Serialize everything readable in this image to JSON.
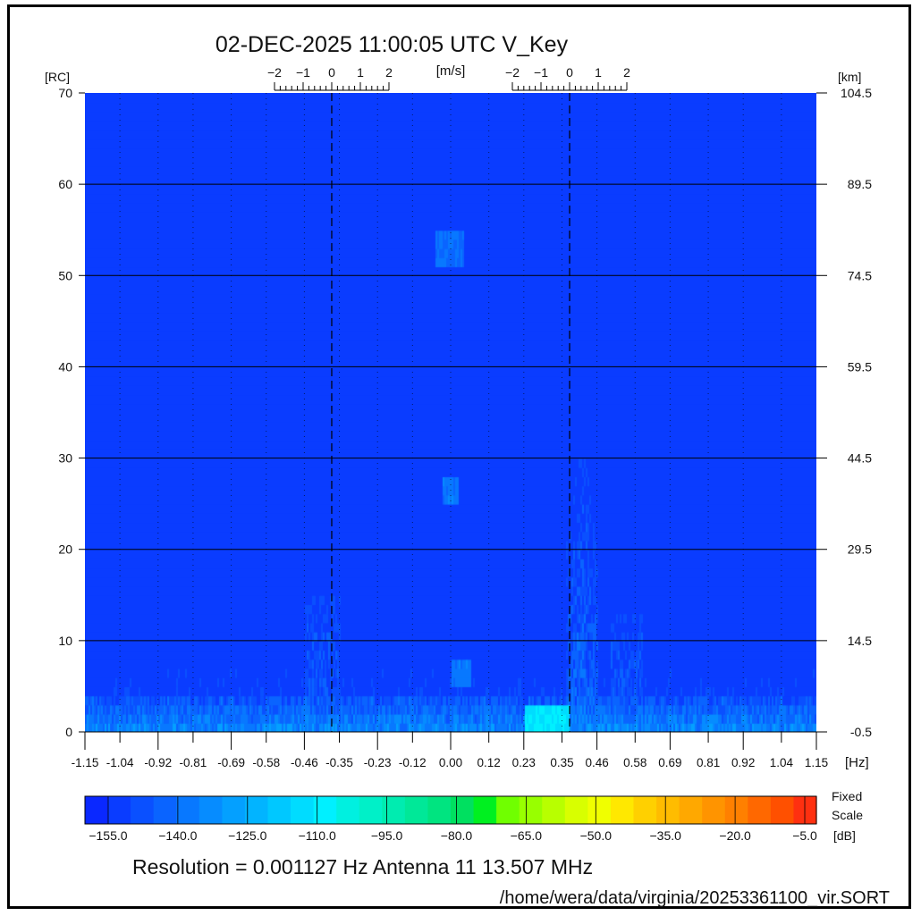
{
  "title": "02-DEC-2025 11:00:05 UTC   V_Key",
  "footer": {
    "info": "Resolution = 0.001127 Hz   Antenna 11   13.507 MHz",
    "path": "/home/wera/data/virginia/20253361100_vir.SORT"
  },
  "chart_data": {
    "type": "heatmap",
    "title": "02-DEC-2025 11:00:05 UTC   V_Key",
    "xlabel": "[Hz]",
    "ylabel_left": "[RC]",
    "ylabel_right": "[km]",
    "xlim": [
      -1.15,
      1.15
    ],
    "ylim": [
      0,
      70
    ],
    "x_ticks": [
      "-1.15",
      "-1.04",
      "-0.92",
      "-0.81",
      "-0.69",
      "-0.58",
      "-0.46",
      "-0.35",
      "-0.23",
      "-0.12",
      "0.00",
      "0.12",
      "0.23",
      "0.35",
      "0.46",
      "0.58",
      "0.69",
      "0.81",
      "0.92",
      "1.04",
      "1.15"
    ],
    "y_ticks_left": [
      "0",
      "10",
      "20",
      "30",
      "40",
      "50",
      "60",
      "70"
    ],
    "y_ticks_right": [
      "-0.5",
      "14.5",
      "29.5",
      "44.5",
      "59.5",
      "74.5",
      "89.5",
      "104.5"
    ],
    "bragg_lines_hz": [
      -0.374,
      0.374
    ],
    "velocity_scale": {
      "label": "[m/s]",
      "ticks": [
        "-2",
        "-1",
        "0",
        "1",
        "2"
      ]
    },
    "grid": true,
    "colorbar": {
      "range_db": [
        -160,
        -2.5
      ],
      "ticks": [
        "-155.0",
        "-140.0",
        "-125.0",
        "-110.0",
        "-95.0",
        "-80.0",
        "-65.0",
        "-50.0",
        "-35.0",
        "-20.0",
        "-5.0"
      ],
      "label_lines": [
        "Fixed",
        "Scale",
        "[dB]"
      ],
      "colors": [
        "#0a28ff",
        "#0a3cff",
        "#0a50ff",
        "#0a64ff",
        "#0878ff",
        "#068cff",
        "#04a0ff",
        "#02b4ff",
        "#00c8ff",
        "#00dcff",
        "#00f0ff",
        "#00f0e0",
        "#00f0c8",
        "#00ecb0",
        "#00e898",
        "#00e480",
        "#00e060",
        "#00f020",
        "#70ff00",
        "#98ff00",
        "#b8ff00",
        "#d8ff00",
        "#f0ff00",
        "#ffe800",
        "#ffd000",
        "#ffbc00",
        "#ffa800",
        "#ff9400",
        "#ff8000",
        "#ff6800",
        "#ff5000",
        "#ff3010"
      ]
    },
    "background_db": -152,
    "features": [
      {
        "x_hz": [
          -1.15,
          1.15
        ],
        "y_rc": [
          0,
          4
        ],
        "db": -128
      },
      {
        "x_hz": [
          0.23,
          0.37
        ],
        "y_rc": [
          0,
          3
        ],
        "db": -108
      },
      {
        "x_hz": [
          0.36,
          0.46
        ],
        "y_rc": [
          0,
          30
        ],
        "db": -132
      },
      {
        "x_hz": [
          -0.46,
          -0.35
        ],
        "y_rc": [
          0,
          15
        ],
        "db": -140
      },
      {
        "x_hz": [
          0.5,
          0.6
        ],
        "y_rc": [
          0,
          13
        ],
        "db": -140
      },
      {
        "x_hz": [
          -0.05,
          0.04
        ],
        "y_rc": [
          51,
          55
        ],
        "db": -138
      },
      {
        "x_hz": [
          -0.03,
          0.02
        ],
        "y_rc": [
          25,
          28
        ],
        "db": -135
      },
      {
        "x_hz": [
          0.0,
          0.06
        ],
        "y_rc": [
          5,
          8
        ],
        "db": -135
      }
    ]
  }
}
